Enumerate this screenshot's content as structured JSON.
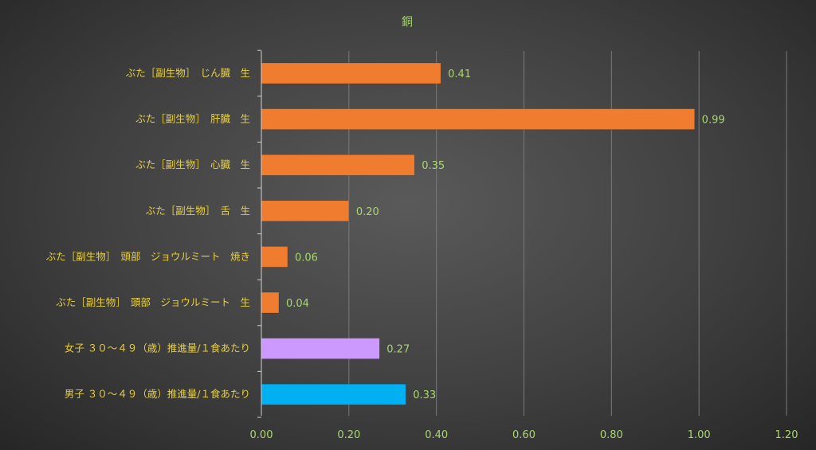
{
  "chart_data": {
    "type": "bar",
    "orientation": "horizontal",
    "title": "銅",
    "categories": [
      "ぶた［副生物］　じん臓　生",
      "ぶた［副生物］　肝臓　生",
      "ぶた［副生物］　心臓　生",
      "ぶた［副生物］　舌　生",
      "ぶた［副生物］　頭部　ジョウルミート　焼き",
      "ぶた［副生物］　頭部　ジョウルミート　生",
      "女子 ３０～４９（歳）推進量/１食あたり",
      "男子 ３０～４９（歳）推進量/１食あたり"
    ],
    "values": [
      0.41,
      0.99,
      0.35,
      0.2,
      0.06,
      0.04,
      0.27,
      0.33
    ],
    "value_labels": [
      "0.41",
      "0.99",
      "0.35",
      "0.20",
      "0.06",
      "0.04",
      "0.27",
      "0.33"
    ],
    "bar_colors": [
      "#f07d2f",
      "#f07d2f",
      "#f07d2f",
      "#f07d2f",
      "#f07d2f",
      "#f07d2f",
      "#cc99ff",
      "#00b0f0"
    ],
    "xlim": [
      0,
      1.2
    ],
    "xticks": [
      0,
      0.2,
      0.4,
      0.6,
      0.8,
      1.0,
      1.2
    ],
    "xtick_labels": [
      "0.00",
      "0.20",
      "0.40",
      "0.60",
      "0.80",
      "1.00",
      "1.20"
    ],
    "xlabel": "",
    "ylabel": "",
    "grid": "vertical",
    "legend": "none",
    "colors": {
      "title": "#a8d86e",
      "category_text": "#e8d040",
      "value_text": "#a8d86e",
      "tick_text": "#a8d86e",
      "gridline": "#7a7a7a",
      "axis": "#d0d0d0"
    }
  }
}
